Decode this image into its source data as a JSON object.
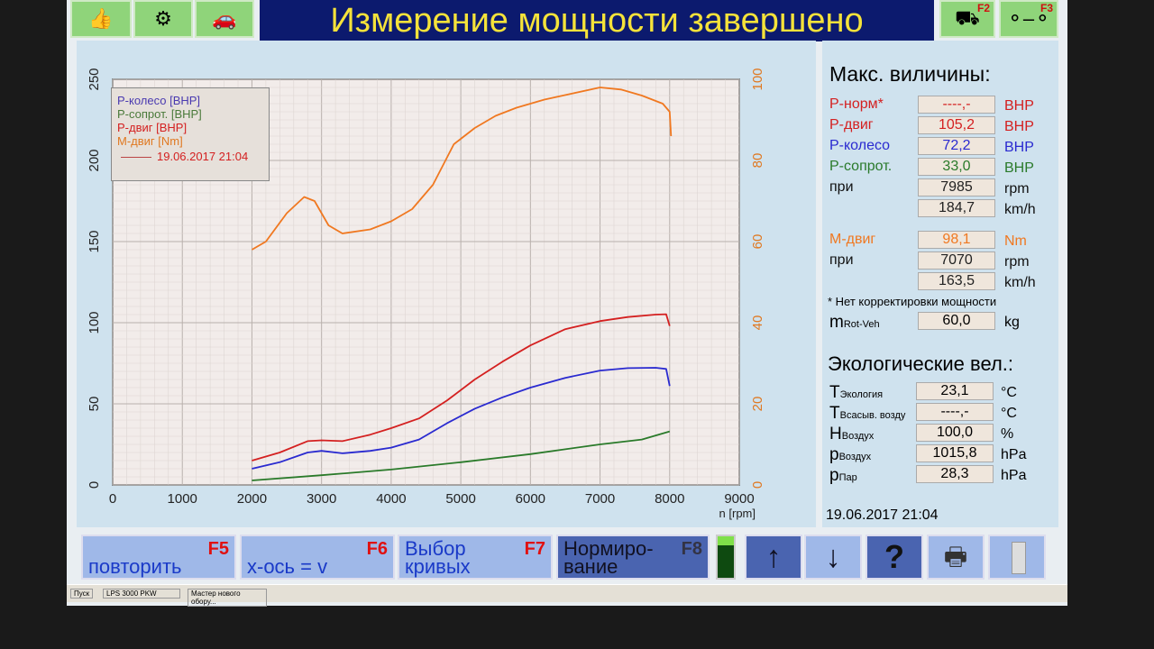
{
  "header": {
    "title": "Измерение мощности завершено",
    "icons": [
      "thumbs-up-icon",
      "engine-icon",
      "car-icon"
    ],
    "f2_label": "F2",
    "f3_label": "F3"
  },
  "chart_data": {
    "type": "line",
    "xlabel": "n [rpm]",
    "xlim": [
      0,
      9000
    ],
    "x_ticks": [
      "0",
      "1000",
      "2000",
      "3000",
      "4000",
      "5000",
      "6000",
      "7000",
      "8000",
      "9000"
    ],
    "ylim_left": [
      0,
      250
    ],
    "y_ticks_left": [
      "0",
      "50",
      "100",
      "150",
      "200",
      "250"
    ],
    "ylim_right": [
      0,
      100
    ],
    "y_ticks_right": [
      "0",
      "20",
      "40",
      "60",
      "80",
      "100"
    ],
    "grid": true,
    "legend_placement": "top-left",
    "legend": {
      "items": [
        "P-колесо [BHP]",
        "P-сопрот. [BHP]",
        "P-двиг [BHP]",
        "M-двиг [Nm]"
      ],
      "date": "19.06.2017 21:04"
    },
    "series": [
      {
        "name": "P-колесо [BHP]",
        "axis": "left",
        "color": "#2a2ad0",
        "x": [
          2000,
          2400,
          2800,
          3000,
          3300,
          3700,
          4000,
          4400,
          4800,
          5200,
          5600,
          6000,
          6500,
          7000,
          7400,
          7800,
          7950,
          8000
        ],
        "y": [
          10,
          14,
          20,
          21,
          19.5,
          21,
          23,
          28,
          38,
          47,
          54,
          60,
          66,
          70.5,
          72,
          72.2,
          71.5,
          61
        ]
      },
      {
        "name": "P-сопрот. [BHP]",
        "axis": "left",
        "color": "#2a7a2a",
        "x": [
          2000,
          3000,
          4000,
          5000,
          6000,
          7000,
          7600,
          8000
        ],
        "y": [
          2.8,
          6,
          9.5,
          14,
          19,
          25,
          28,
          33
        ]
      },
      {
        "name": "P-двиг [BHP]",
        "axis": "left",
        "color": "#d42020",
        "x": [
          2000,
          2400,
          2800,
          3000,
          3300,
          3700,
          4000,
          4400,
          4800,
          5200,
          5600,
          6000,
          6500,
          7000,
          7400,
          7800,
          7950,
          8000
        ],
        "y": [
          15,
          20,
          27,
          27.5,
          27,
          31,
          35,
          41,
          52,
          65,
          76,
          86,
          96,
          101,
          103.5,
          105,
          105.2,
          98
        ]
      },
      {
        "name": "M-двиг [Nm]",
        "axis": "right",
        "color": "#f07820",
        "x": [
          2000,
          2200,
          2500,
          2750,
          2900,
          3100,
          3300,
          3700,
          4000,
          4300,
          4600,
          4900,
          5200,
          5500,
          5800,
          6200,
          6600,
          7000,
          7300,
          7600,
          7900,
          8000,
          8020
        ],
        "y": [
          58,
          60,
          67,
          71,
          70,
          64,
          62,
          63,
          65,
          68,
          74,
          84,
          88,
          91,
          93,
          95,
          96.5,
          98,
          97.5,
          96,
          94,
          92,
          86
        ]
      }
    ]
  },
  "max": {
    "title": "Макс. виличины:",
    "rows": [
      {
        "label": "P-норм*",
        "value": "----,-",
        "unit": "BHP",
        "color": "#d42020"
      },
      {
        "label": "P-двиг",
        "value": "105,2",
        "unit": "BHP",
        "color": "#d42020"
      },
      {
        "label": "P-колесо",
        "value": "72,2",
        "unit": "BHP",
        "color": "#2a2ad0"
      },
      {
        "label": "P-сопрот.",
        "value": "33,0",
        "unit": "BHP",
        "color": "#2a7a2a"
      },
      {
        "label": "при",
        "value": "7985",
        "unit": "rpm",
        "color": "#111"
      },
      {
        "label": "",
        "value": "184,7",
        "unit": "km/h",
        "color": "#111"
      },
      {
        "label": "M-двиг",
        "value": "98,1",
        "unit": "Nm",
        "color": "#f07820"
      },
      {
        "label": "при",
        "value": "7070",
        "unit": "rpm",
        "color": "#111"
      },
      {
        "label": "",
        "value": "163,5",
        "unit": "km/h",
        "color": "#111"
      }
    ],
    "note": "* Нет корректировки мощности",
    "mass": {
      "label": "m",
      "sub": "Rot-Veh",
      "value": "60,0",
      "unit": "kg"
    }
  },
  "eco": {
    "title": "Экологические вел.:",
    "rows": [
      {
        "label": "T",
        "sub": "Экология",
        "value": "23,1",
        "unit": "°C"
      },
      {
        "label": "T",
        "sub": "Всасыв. возду",
        "value": "----,-",
        "unit": "°C"
      },
      {
        "label": "H",
        "sub": "Воздух",
        "value": "100,0",
        "unit": "%"
      },
      {
        "label": "p",
        "sub": "Воздух",
        "value": "1015,8",
        "unit": "hPa"
      },
      {
        "label": "p",
        "sub": "Пар",
        "value": "28,3",
        "unit": "hPa"
      }
    ],
    "datetime": "19.06.2017  21:04"
  },
  "buttons": [
    {
      "fkey": "F5",
      "label": "повторить"
    },
    {
      "fkey": "F6",
      "label": "x-ось = v"
    },
    {
      "fkey": "F7",
      "label": "Выбор кривых"
    },
    {
      "fkey": "F8",
      "label": "Нормиро- вание"
    }
  ],
  "taskbar": {
    "start": "Пуск",
    "items": [
      "LPS 3000 PKW",
      "Мастер нового обору..."
    ]
  }
}
